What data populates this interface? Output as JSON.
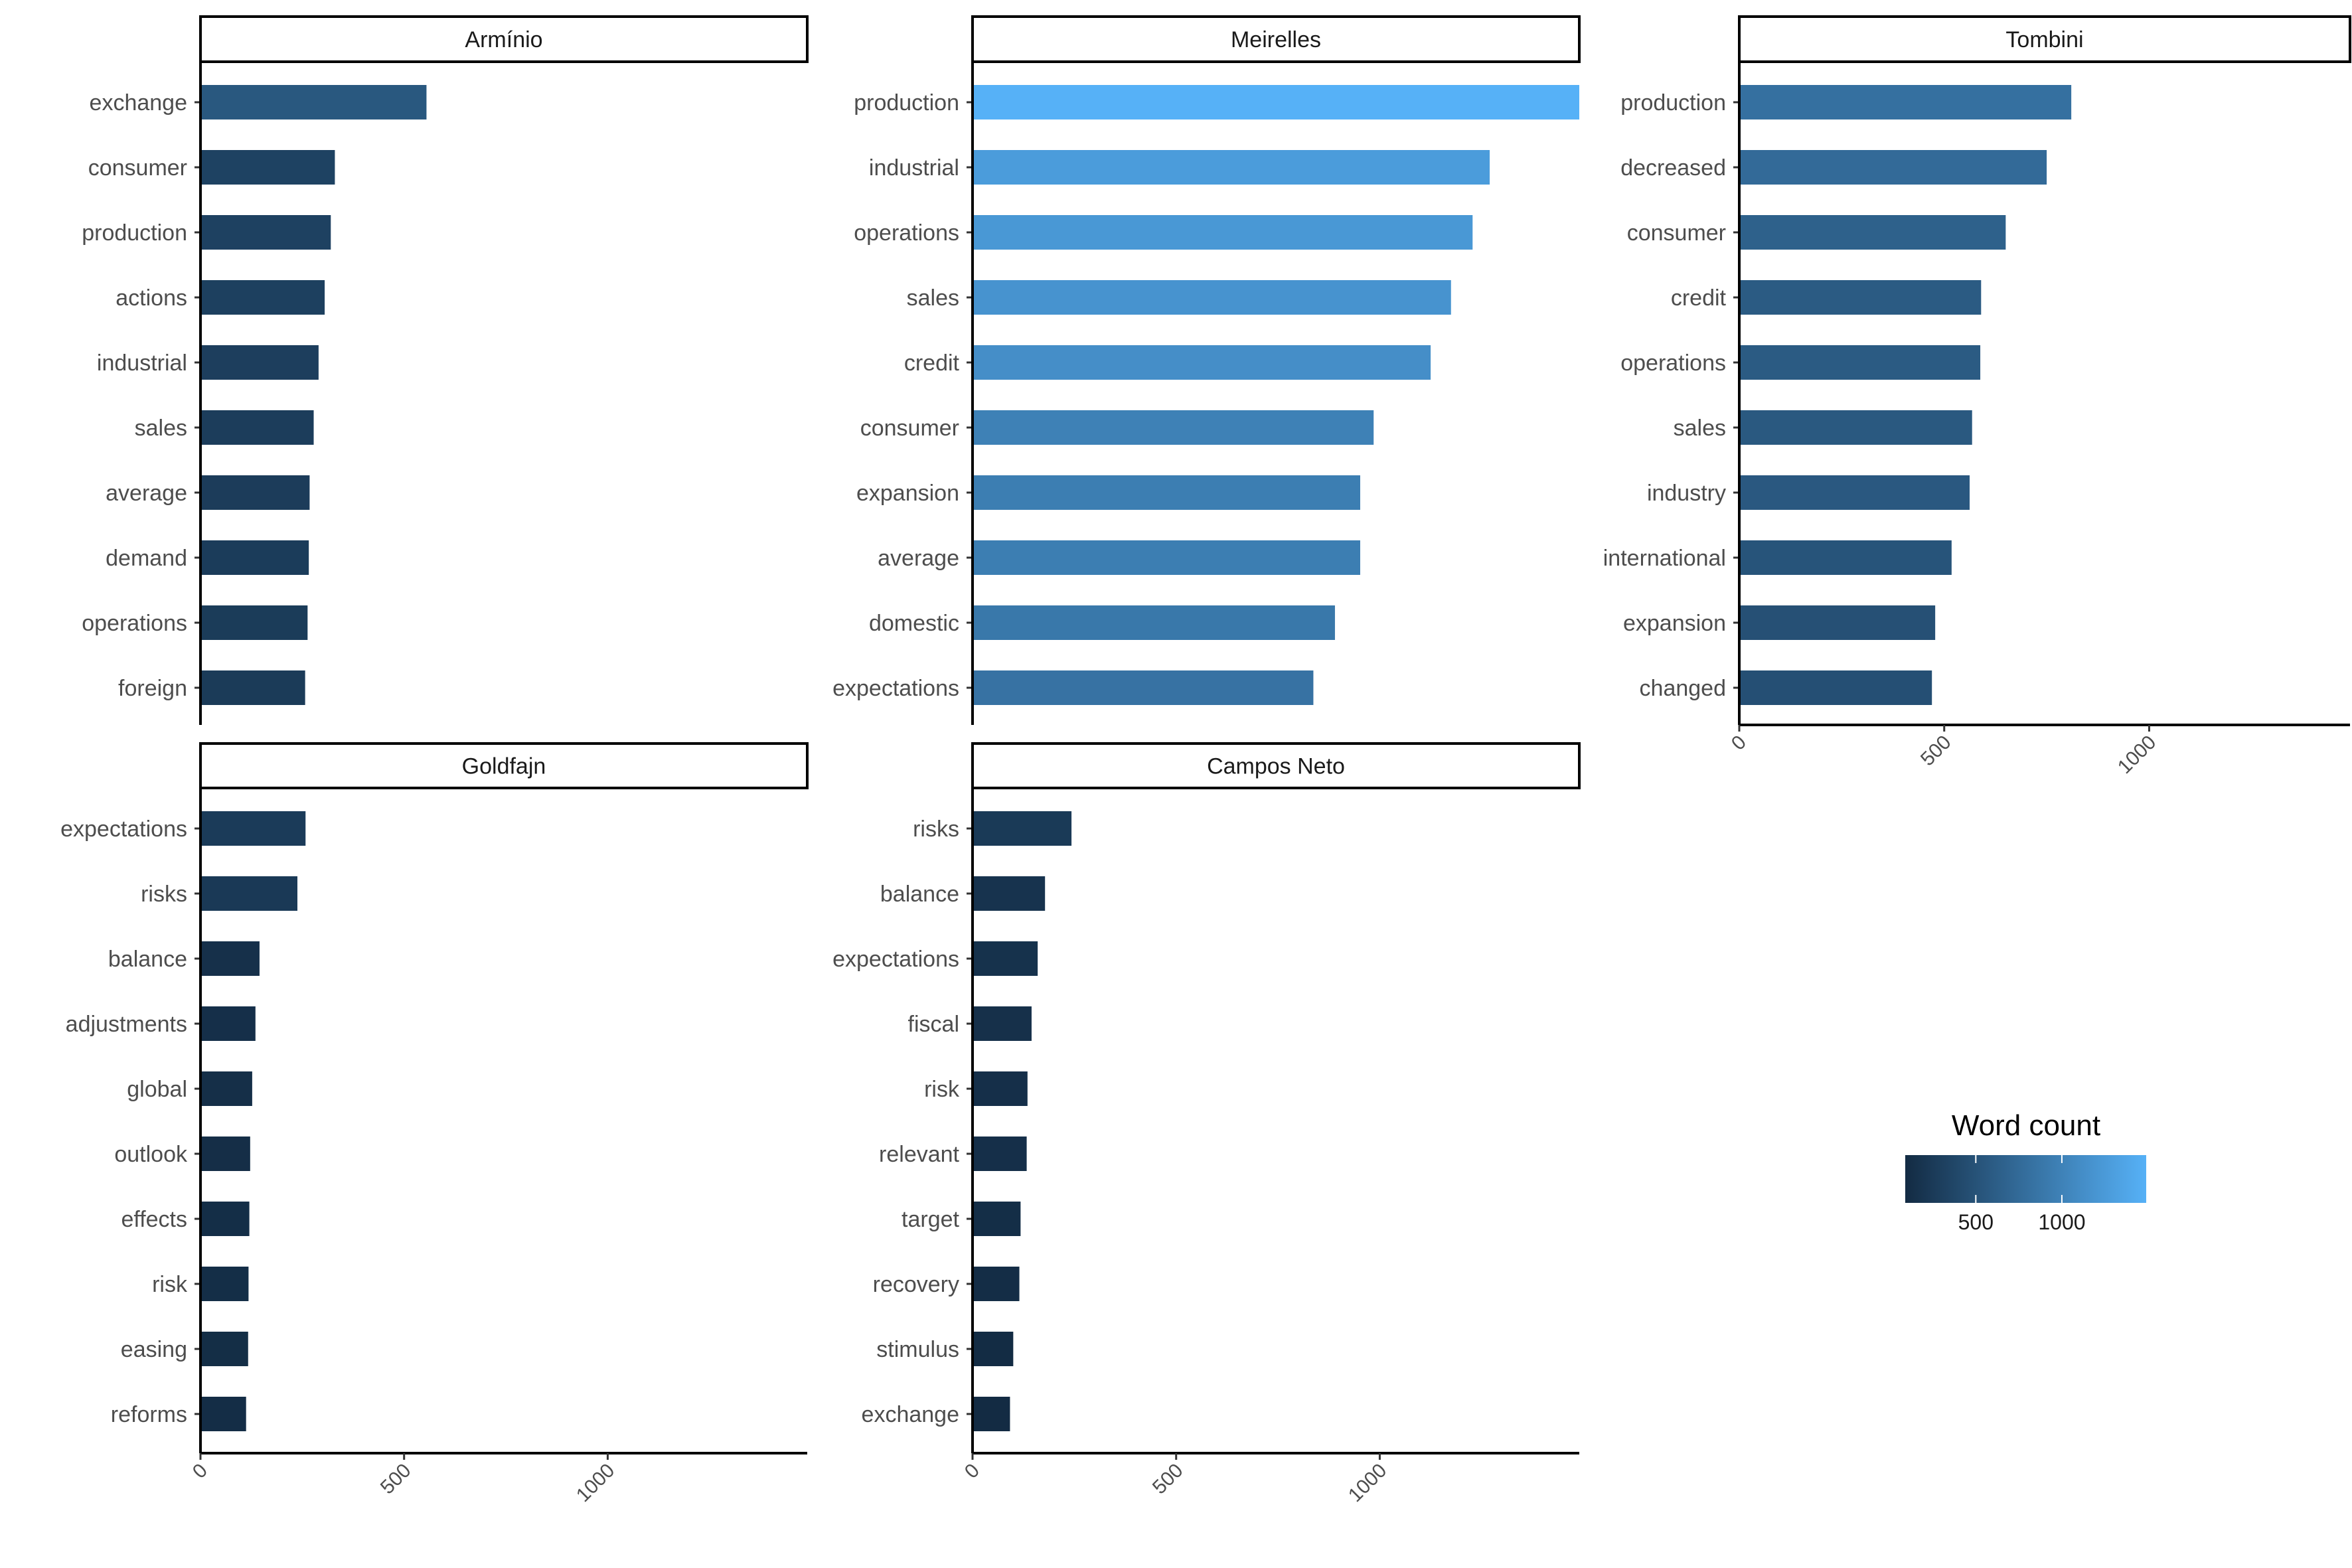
{
  "chart_data": {
    "type": "bar",
    "orientation": "horizontal",
    "xlim": [
      0,
      1490
    ],
    "x_ticks": [
      "0",
      "500",
      "1000"
    ],
    "x_tick_values": [
      0,
      500,
      1000
    ],
    "legend": {
      "title": "Word count",
      "placement": "right",
      "tick_labels": [
        "500",
        "1000"
      ],
      "tick_values": [
        500,
        1000
      ],
      "range": [
        90,
        1490
      ],
      "color_low": "#132b43",
      "color_high": "#56b1f7"
    },
    "panels": [
      {
        "title": "Armínio",
        "categories": [
          "exchange",
          "consumer",
          "production",
          "actions",
          "industrial",
          "sales",
          "average",
          "demand",
          "operations",
          "foreign"
        ],
        "values": [
          555,
          330,
          320,
          305,
          290,
          278,
          268,
          266,
          263,
          257
        ]
      },
      {
        "title": "Meirelles",
        "categories": [
          "production",
          "industrial",
          "operations",
          "sales",
          "credit",
          "consumer",
          "expansion",
          "average",
          "domestic",
          "expectations"
        ],
        "values": [
          1490,
          1270,
          1228,
          1175,
          1125,
          985,
          952,
          952,
          890,
          837
        ]
      },
      {
        "title": "Tombini",
        "categories": [
          "production",
          "decreased",
          "consumer",
          "credit",
          "operations",
          "sales",
          "industry",
          "international",
          "expansion",
          "changed"
        ],
        "values": [
          810,
          750,
          650,
          590,
          588,
          568,
          562,
          518,
          478,
          470
        ]
      },
      {
        "title": "Goldfajn",
        "categories": [
          "expectations",
          "risks",
          "balance",
          "adjustments",
          "global",
          "outlook",
          "effects",
          "risk",
          "easing",
          "reforms"
        ],
        "values": [
          258,
          238,
          145,
          135,
          127,
          122,
          120,
          118,
          117,
          112
        ]
      },
      {
        "title": "Campos Neto",
        "categories": [
          "risks",
          "balance",
          "expectations",
          "fiscal",
          "risk",
          "relevant",
          "target",
          "recovery",
          "stimulus",
          "exchange"
        ],
        "values": [
          243,
          178,
          160,
          145,
          135,
          133,
          118,
          115,
          100,
          92
        ]
      }
    ]
  }
}
